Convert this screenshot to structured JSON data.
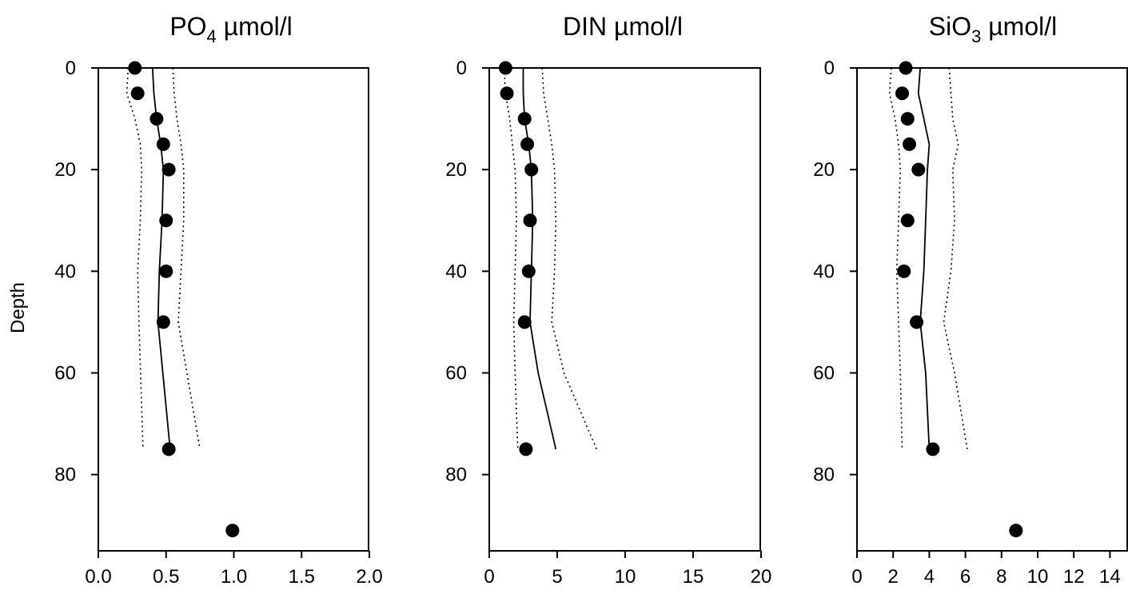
{
  "chart_data": [
    {
      "type": "scatter",
      "title": "PO",
      "title_sub": "4",
      "title_unit": " µmol/l",
      "ylabel": "Depth",
      "xlim": [
        0,
        2.0
      ],
      "ylim": [
        95,
        0
      ],
      "y_inverted": true,
      "xticks": [
        "0.0",
        "0.5",
        "1.0",
        "1.5",
        "2.0"
      ],
      "xtick_values": [
        0,
        0.5,
        1.0,
        1.5,
        2.0
      ],
      "yticks": [
        "0",
        "20",
        "40",
        "60",
        "80"
      ],
      "ytick_values": [
        0,
        20,
        40,
        60,
        80
      ],
      "points": [
        {
          "x": 0.27,
          "y": 0
        },
        {
          "x": 0.29,
          "y": 5
        },
        {
          "x": 0.43,
          "y": 10
        },
        {
          "x": 0.48,
          "y": 15
        },
        {
          "x": 0.52,
          "y": 20
        },
        {
          "x": 0.5,
          "y": 30
        },
        {
          "x": 0.5,
          "y": 40
        },
        {
          "x": 0.48,
          "y": 50
        },
        {
          "x": 0.52,
          "y": 75
        },
        {
          "x": 0.99,
          "y": 91
        }
      ],
      "mean_line": [
        [
          0.4,
          0
        ],
        [
          0.41,
          5
        ],
        [
          0.43,
          10
        ],
        [
          0.46,
          15
        ],
        [
          0.48,
          20
        ],
        [
          0.47,
          30
        ],
        [
          0.45,
          40
        ],
        [
          0.44,
          50
        ],
        [
          0.53,
          75
        ]
      ],
      "lower_line": [
        [
          0.22,
          0
        ],
        [
          0.21,
          5
        ],
        [
          0.27,
          10
        ],
        [
          0.31,
          15
        ],
        [
          0.32,
          20
        ],
        [
          0.31,
          30
        ],
        [
          0.29,
          40
        ],
        [
          0.3,
          50
        ],
        [
          0.33,
          75
        ]
      ],
      "upper_line": [
        [
          0.55,
          0
        ],
        [
          0.56,
          5
        ],
        [
          0.58,
          10
        ],
        [
          0.61,
          15
        ],
        [
          0.63,
          20
        ],
        [
          0.63,
          30
        ],
        [
          0.61,
          40
        ],
        [
          0.59,
          50
        ],
        [
          0.75,
          75
        ]
      ]
    },
    {
      "type": "scatter",
      "title": "DIN µmol/l",
      "title_sub": "",
      "title_unit": "",
      "ylabel": "",
      "xlim": [
        0,
        20
      ],
      "ylim": [
        95,
        0
      ],
      "y_inverted": true,
      "xticks": [
        "0",
        "5",
        "10",
        "15",
        "20"
      ],
      "xtick_values": [
        0,
        5,
        10,
        15,
        20
      ],
      "yticks": [
        "0",
        "20",
        "40",
        "60",
        "80"
      ],
      "ytick_values": [
        0,
        20,
        40,
        60,
        80
      ],
      "points": [
        {
          "x": 1.2,
          "y": 0
        },
        {
          "x": 1.3,
          "y": 5
        },
        {
          "x": 2.6,
          "y": 10
        },
        {
          "x": 2.8,
          "y": 15
        },
        {
          "x": 3.1,
          "y": 20
        },
        {
          "x": 3.0,
          "y": 30
        },
        {
          "x": 2.9,
          "y": 40
        },
        {
          "x": 2.6,
          "y": 50
        },
        {
          "x": 2.7,
          "y": 75
        }
      ],
      "mean_line": [
        [
          2.5,
          0
        ],
        [
          2.5,
          5
        ],
        [
          2.6,
          10
        ],
        [
          2.9,
          15
        ],
        [
          3.1,
          20
        ],
        [
          3.2,
          30
        ],
        [
          3.1,
          40
        ],
        [
          3.0,
          50
        ],
        [
          3.6,
          60
        ],
        [
          4.9,
          75
        ]
      ],
      "lower_line": [
        [
          1.1,
          0
        ],
        [
          1.2,
          5
        ],
        [
          1.5,
          10
        ],
        [
          1.7,
          15
        ],
        [
          1.9,
          20
        ],
        [
          2.0,
          30
        ],
        [
          1.9,
          40
        ],
        [
          1.8,
          50
        ],
        [
          1.9,
          60
        ],
        [
          2.1,
          75
        ]
      ],
      "upper_line": [
        [
          3.9,
          0
        ],
        [
          4.0,
          5
        ],
        [
          4.3,
          10
        ],
        [
          4.6,
          15
        ],
        [
          4.8,
          20
        ],
        [
          4.9,
          30
        ],
        [
          4.8,
          40
        ],
        [
          4.6,
          50
        ],
        [
          5.5,
          60
        ],
        [
          7.9,
          75
        ]
      ]
    },
    {
      "type": "scatter",
      "title": "SiO",
      "title_sub": "3",
      "title_unit": " µmol/l",
      "ylabel": "",
      "xlim": [
        0,
        15
      ],
      "ylim": [
        95,
        0
      ],
      "y_inverted": true,
      "xticks": [
        "0",
        "2",
        "4",
        "6",
        "8",
        "10",
        "12",
        "14"
      ],
      "xtick_values": [
        0,
        2,
        4,
        6,
        8,
        10,
        12,
        14
      ],
      "yticks": [
        "0",
        "20",
        "40",
        "60",
        "80"
      ],
      "ytick_values": [
        0,
        20,
        40,
        60,
        80
      ],
      "points": [
        {
          "x": 2.7,
          "y": 0
        },
        {
          "x": 2.5,
          "y": 5
        },
        {
          "x": 2.8,
          "y": 10
        },
        {
          "x": 2.9,
          "y": 15
        },
        {
          "x": 3.4,
          "y": 20
        },
        {
          "x": 2.8,
          "y": 30
        },
        {
          "x": 2.6,
          "y": 40
        },
        {
          "x": 3.3,
          "y": 50
        },
        {
          "x": 4.2,
          "y": 75
        },
        {
          "x": 8.8,
          "y": 91
        }
      ],
      "mean_line": [
        [
          3.5,
          0
        ],
        [
          3.4,
          5
        ],
        [
          3.7,
          10
        ],
        [
          4.0,
          15
        ],
        [
          3.9,
          20
        ],
        [
          3.8,
          30
        ],
        [
          3.7,
          40
        ],
        [
          3.5,
          50
        ],
        [
          3.8,
          60
        ],
        [
          4.0,
          75
        ]
      ],
      "lower_line": [
        [
          1.9,
          0
        ],
        [
          1.8,
          5
        ],
        [
          2.1,
          10
        ],
        [
          2.3,
          15
        ],
        [
          2.4,
          20
        ],
        [
          2.3,
          30
        ],
        [
          2.2,
          40
        ],
        [
          2.3,
          50
        ],
        [
          2.4,
          60
        ],
        [
          2.5,
          75
        ]
      ],
      "upper_line": [
        [
          5.1,
          0
        ],
        [
          5.2,
          5
        ],
        [
          5.3,
          10
        ],
        [
          5.6,
          15
        ],
        [
          5.3,
          20
        ],
        [
          5.4,
          30
        ],
        [
          5.2,
          40
        ],
        [
          4.8,
          50
        ],
        [
          5.4,
          60
        ],
        [
          6.1,
          75
        ]
      ]
    }
  ]
}
